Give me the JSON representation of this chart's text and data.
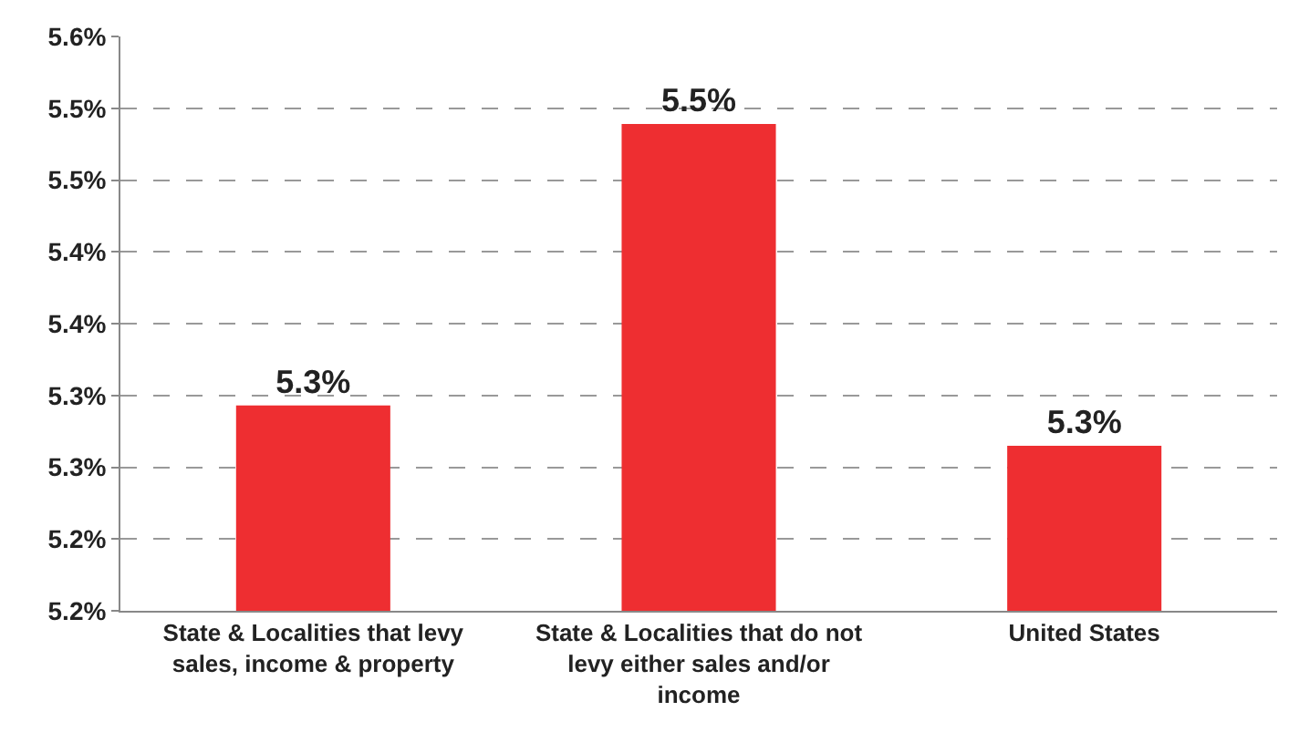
{
  "chart_data": {
    "type": "bar",
    "categories": [
      "State & Localities that levy sales, income & property",
      "State & Localities that do not levy either sales and/or income",
      "United States"
    ],
    "values": [
      5.293,
      5.489,
      5.265
    ],
    "value_labels": [
      "5.3%",
      "5.5%",
      "5.3%"
    ],
    "color": "#ee2e31",
    "ylim": [
      5.15,
      5.55
    ],
    "yticks": [
      {
        "value": 5.15,
        "label": "5.2%"
      },
      {
        "value": 5.2,
        "label": "5.2%"
      },
      {
        "value": 5.25,
        "label": "5.3%"
      },
      {
        "value": 5.3,
        "label": "5.3%"
      },
      {
        "value": 5.35,
        "label": "5.4%"
      },
      {
        "value": 5.4,
        "label": "5.4%"
      },
      {
        "value": 5.45,
        "label": "5.5%"
      },
      {
        "value": 5.5,
        "label": "5.5%"
      },
      {
        "value": 5.55,
        "label": "5.6%"
      }
    ],
    "grid": "y"
  }
}
